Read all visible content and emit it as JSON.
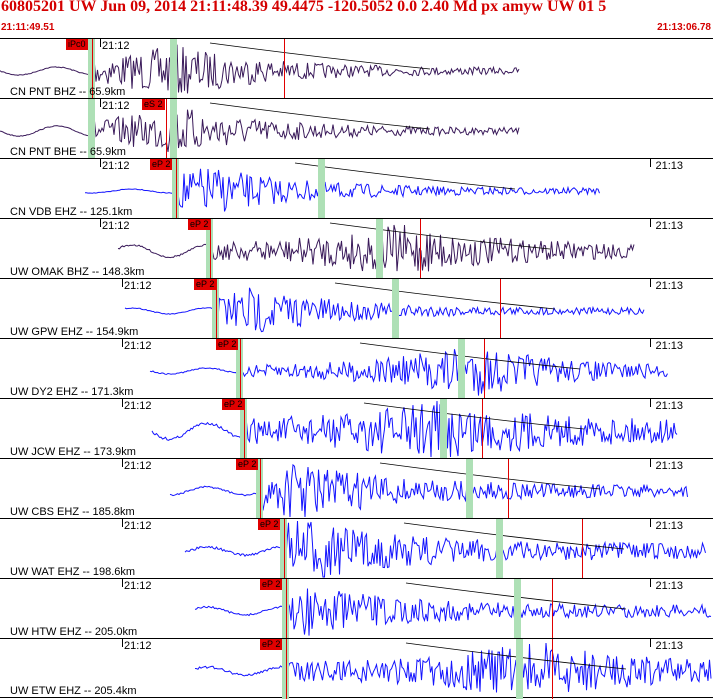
{
  "header": {
    "title": "60805201 UW Jun 09, 2014 21:11:48.39   49.4475 -120.5052  0.0 2.40 Md px amyw UW 01   5",
    "start_time": "21:11:49.51",
    "end_time": "21:13:06.78"
  },
  "colors": {
    "header_red": "#d40000",
    "pick_red": "#e00000",
    "band_green": "#aee0b6",
    "trace_dark": "#3a1a5a",
    "trace_blue": "#1414ff"
  },
  "traces": [
    {
      "channel": "CN PNT BHZ -- 65.9km",
      "pick": "iPc0",
      "left_time": "21:12",
      "right_time": "",
      "color": "dark"
    },
    {
      "channel": "CN PNT BHE -- 65.9km",
      "pick": "eS 2",
      "left_time": "21:12",
      "right_time": "",
      "color": "dark"
    },
    {
      "channel": "CN VDB EHZ -- 125.1km",
      "pick": "eP 2",
      "left_time": "21:12",
      "right_time": "21:13",
      "color": "blue"
    },
    {
      "channel": "UW OMAK BHZ -- 148.3km",
      "pick": "eP 2",
      "left_time": "21:12",
      "right_time": "21:13",
      "color": "dark"
    },
    {
      "channel": "UW GPW EHZ -- 154.9km",
      "pick": "eP 2",
      "left_time": "21:12",
      "right_time": "21:13",
      "color": "blue"
    },
    {
      "channel": "UW DY2 EHZ -- 171.3km",
      "pick": "eP 2",
      "left_time": "21:12",
      "right_time": "21:13",
      "color": "blue"
    },
    {
      "channel": "UW JCW EHZ -- 173.9km",
      "pick": "eP 2",
      "left_time": "21:12",
      "right_time": "21:13",
      "color": "blue"
    },
    {
      "channel": "UW CBS EHZ -- 185.8km",
      "pick": "eP 2",
      "left_time": "21:12",
      "right_time": "21:13",
      "color": "blue"
    },
    {
      "channel": "UW WAT EHZ -- 198.6km",
      "pick": "eP 2",
      "left_time": "21:12",
      "right_time": "21:13",
      "color": "blue"
    },
    {
      "channel": "UW HTW EHZ -- 205.0km",
      "pick": "eP 2",
      "left_time": "21:12",
      "right_time": "21:13",
      "color": "blue"
    },
    {
      "channel": "UW ETW EHZ -- 205.4km",
      "pick": "eP 2",
      "left_time": "21:12",
      "right_time": "21:13",
      "color": "blue"
    }
  ]
}
